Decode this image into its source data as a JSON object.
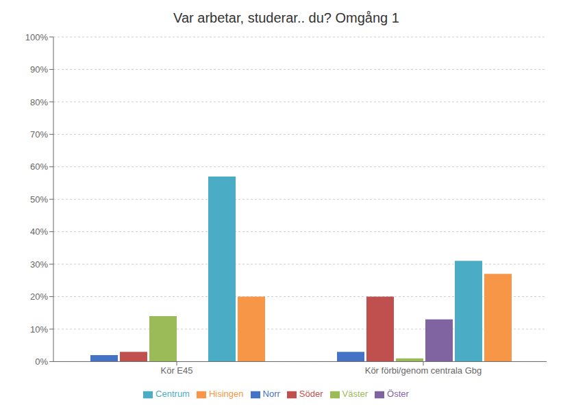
{
  "chart_data": {
    "type": "bar",
    "title": "Var arbetar, studerar.. du? Omgång 1",
    "categories": [
      "Kör E45",
      "Kör förbi/genom centrala Gbg"
    ],
    "series": [
      {
        "name": "Norr",
        "color": "#4472C4",
        "values": [
          2,
          3
        ]
      },
      {
        "name": "Söder",
        "color": "#C0504D",
        "values": [
          3,
          20
        ]
      },
      {
        "name": "Väster",
        "color": "#9BBB59",
        "values": [
          14,
          1
        ]
      },
      {
        "name": "Öster",
        "color": "#8064A2",
        "values": [
          0,
          13
        ]
      },
      {
        "name": "Centrum",
        "color": "#4BACC6",
        "values": [
          57,
          31
        ]
      },
      {
        "name": "Hisingen",
        "color": "#F79646",
        "values": [
          20,
          27
        ]
      }
    ],
    "ylim": [
      0,
      100
    ],
    "yticks": [
      {
        "value": 0,
        "label": "0%"
      },
      {
        "value": 10,
        "label": "10%"
      },
      {
        "value": 20,
        "label": "20%"
      },
      {
        "value": 30,
        "label": "30%"
      },
      {
        "value": 40,
        "label": "40%"
      },
      {
        "value": 50,
        "label": "50%"
      },
      {
        "value": 60,
        "label": "60%"
      },
      {
        "value": 70,
        "label": "70%"
      },
      {
        "value": 80,
        "label": "80%"
      },
      {
        "value": 90,
        "label": "90%"
      },
      {
        "value": 100,
        "label": "100%"
      }
    ],
    "grid": true,
    "legend": "bottom"
  }
}
